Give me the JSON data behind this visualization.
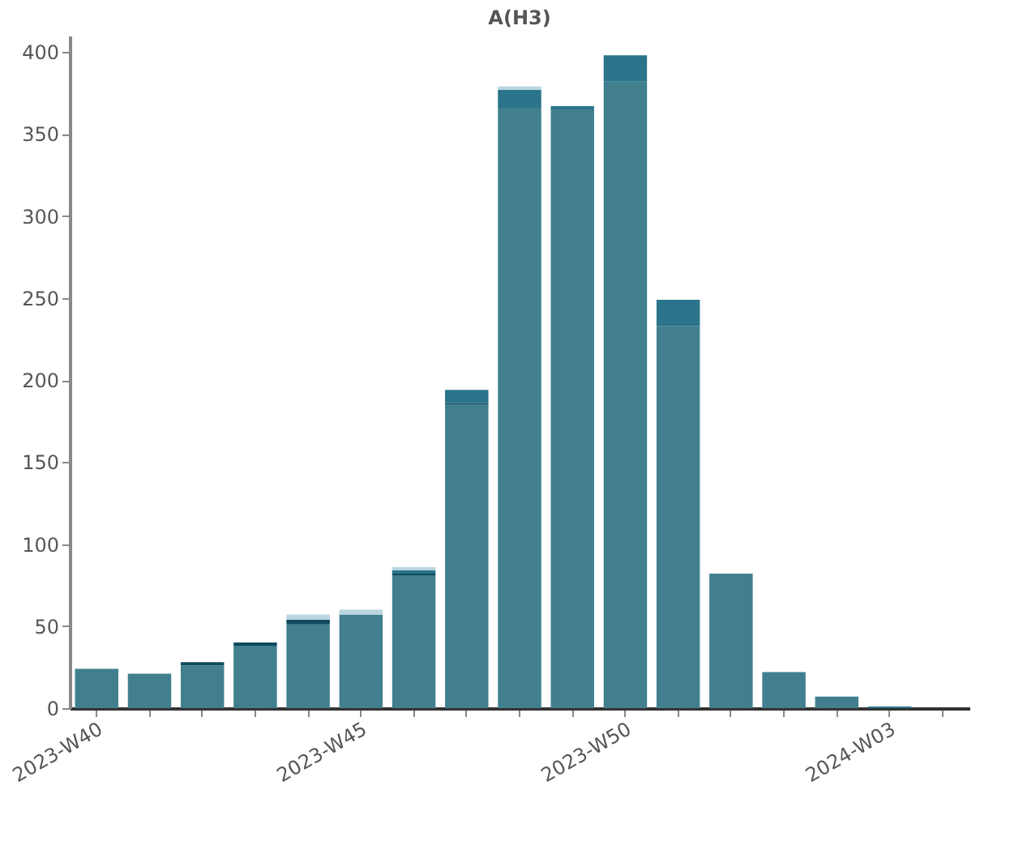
{
  "chart_data": {
    "type": "bar",
    "title": "A(H3)",
    "stacked": true,
    "categories": [
      "2023-W40",
      null,
      null,
      null,
      null,
      "2023-W45",
      null,
      null,
      null,
      null,
      "2023-W50",
      null,
      null,
      null,
      null,
      "2024-W03",
      null
    ],
    "series": [
      {
        "color": "#417f8f",
        "values": [
          24,
          21,
          26,
          38,
          51,
          57,
          81,
          185,
          366,
          365,
          382,
          233,
          82,
          22,
          7,
          null,
          null
        ]
      },
      {
        "color": "#0f4b5e",
        "values": [
          null,
          null,
          2,
          2,
          3,
          null,
          1,
          1,
          null,
          null,
          null,
          null,
          null,
          null,
          null,
          null,
          null
        ]
      },
      {
        "color": "#2a748c",
        "values": [
          null,
          null,
          null,
          null,
          null,
          null,
          2,
          8,
          11,
          2,
          16,
          16,
          null,
          null,
          null,
          1,
          null
        ]
      },
      {
        "color": "#b9d5e0",
        "values": [
          null,
          null,
          null,
          null,
          3,
          3,
          2,
          null,
          2,
          null,
          null,
          null,
          null,
          null,
          null,
          null,
          null
        ]
      }
    ],
    "ylim": [
      0,
      410
    ],
    "yticks": [
      0,
      50,
      100,
      150,
      200,
      250,
      300,
      350,
      400
    ],
    "grid": false,
    "legend": false
  }
}
